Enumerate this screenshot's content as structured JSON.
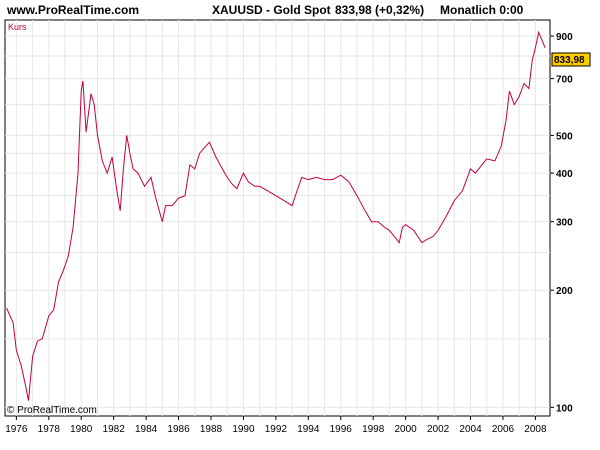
{
  "header": {
    "site": "www.ProRealTime.com",
    "instrument": "XAUUSD - Gold Spot",
    "price_change": "833,98 (+0,32%)",
    "period": "Monatlich 0:00"
  },
  "series_label": "Kurs",
  "copyright": "© ProRealTime.com",
  "current_price_label": "833,98",
  "colors": {
    "line": "#c00040",
    "current_price_bg": "#ffcc00",
    "grid": "#e6e6e6"
  },
  "chart_data": {
    "type": "line",
    "y_scale": "log",
    "ylim": [
      95,
      990
    ],
    "xlim": [
      1975.3,
      2008.9
    ],
    "x_ticks": [
      "1976",
      "1978",
      "1980",
      "1982",
      "1984",
      "1986",
      "1988",
      "1990",
      "1992",
      "1994",
      "1996",
      "1998",
      "2000",
      "2002",
      "2004",
      "2006",
      "2008"
    ],
    "y_ticks": [
      {
        "value": 100,
        "label": "100"
      },
      {
        "value": 200,
        "label": "200"
      },
      {
        "value": 300,
        "label": "300"
      },
      {
        "value": 400,
        "label": "400"
      },
      {
        "value": 500,
        "label": "500"
      },
      {
        "value": 700,
        "label": "700"
      },
      {
        "value": 900,
        "label": "900"
      }
    ],
    "series": [
      {
        "name": "Kurs",
        "x": [
          1975.4,
          1975.6,
          1975.8,
          1976.0,
          1976.3,
          1976.6,
          1976.75,
          1977.0,
          1977.3,
          1977.6,
          1978.0,
          1978.3,
          1978.6,
          1978.9,
          1979.2,
          1979.5,
          1979.8,
          1980.0,
          1980.1,
          1980.3,
          1980.6,
          1980.8,
          1981.0,
          1981.3,
          1981.6,
          1981.9,
          1982.2,
          1982.4,
          1982.6,
          1982.8,
          1983.0,
          1983.2,
          1983.5,
          1983.9,
          1984.3,
          1984.6,
          1985.0,
          1985.2,
          1985.6,
          1986.0,
          1986.4,
          1986.7,
          1987.0,
          1987.3,
          1987.7,
          1987.9,
          1988.3,
          1988.7,
          1989.0,
          1989.3,
          1989.6,
          1990.0,
          1990.3,
          1990.7,
          1991.0,
          1991.5,
          1992.0,
          1992.5,
          1993.0,
          1993.3,
          1993.6,
          1994.0,
          1994.5,
          1995.0,
          1995.5,
          1996.0,
          1996.5,
          1997.0,
          1997.5,
          1997.9,
          1998.3,
          1998.7,
          1999.0,
          1999.3,
          1999.6,
          1999.8,
          2000.0,
          2000.5,
          2001.0,
          2001.3,
          2001.7,
          2002.0,
          2002.5,
          2003.0,
          2003.5,
          2004.0,
          2004.3,
          2004.7,
          2005.0,
          2005.5,
          2005.9,
          2006.2,
          2006.4,
          2006.7,
          2007.0,
          2007.3,
          2007.6,
          2007.8,
          2008.0,
          2008.2,
          2008.4,
          2008.6
        ],
        "values": [
          180,
          172,
          165,
          140,
          128,
          112,
          104,
          135,
          148,
          150,
          172,
          178,
          210,
          225,
          245,
          290,
          400,
          650,
          690,
          510,
          640,
          600,
          500,
          430,
          400,
          440,
          360,
          320,
          410,
          500,
          450,
          410,
          400,
          370,
          390,
          345,
          300,
          330,
          330,
          345,
          350,
          420,
          410,
          450,
          470,
          480,
          440,
          410,
          390,
          375,
          365,
          400,
          380,
          370,
          370,
          360,
          350,
          340,
          330,
          360,
          390,
          385,
          390,
          385,
          385,
          395,
          380,
          350,
          320,
          300,
          300,
          290,
          285,
          275,
          265,
          290,
          295,
          285,
          265,
          270,
          275,
          285,
          310,
          340,
          360,
          410,
          400,
          420,
          435,
          430,
          470,
          550,
          650,
          600,
          630,
          680,
          660,
          780,
          840,
          920,
          880,
          840
        ]
      }
    ]
  }
}
